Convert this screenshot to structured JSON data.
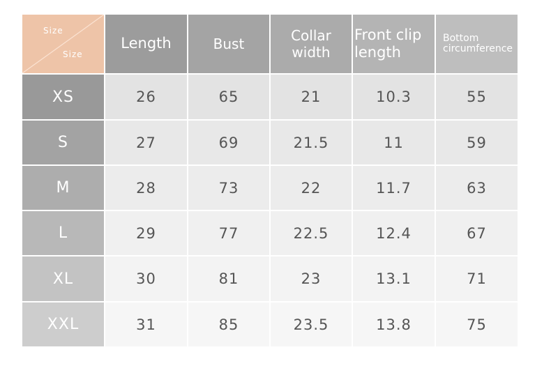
{
  "table": {
    "corner": {
      "top": "Size",
      "bottom": "Size",
      "color": "#eec4a8"
    },
    "headers": [
      "Length",
      "Bust",
      "Collar width",
      "Front clip length",
      "Bottom circumference"
    ],
    "rows": [
      {
        "size": "XS",
        "values": [
          "26",
          "65",
          "21",
          "10.3",
          "55"
        ]
      },
      {
        "size": "S",
        "values": [
          "27",
          "69",
          "21.5",
          "11",
          "59"
        ]
      },
      {
        "size": "M",
        "values": [
          "28",
          "73",
          "22",
          "11.7",
          "63"
        ]
      },
      {
        "size": "L",
        "values": [
          "29",
          "77",
          "22.5",
          "12.4",
          "67"
        ]
      },
      {
        "size": "XL",
        "values": [
          "30",
          "81",
          "23",
          "13.1",
          "71"
        ]
      },
      {
        "size": "XXL",
        "values": [
          "31",
          "85",
          "23.5",
          "13.8",
          "75"
        ]
      }
    ]
  }
}
